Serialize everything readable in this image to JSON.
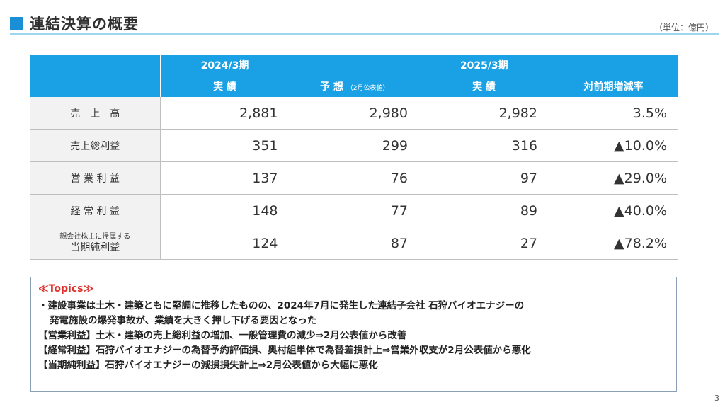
{
  "header": {
    "title": "連結決算の概要",
    "unit": "（単位：億円）"
  },
  "table": {
    "header_row1": [
      "2024/3期",
      "2025/3期"
    ],
    "header_row2": {
      "actual_prev": "実 績",
      "forecast": "予 想",
      "forecast_note": "（2月公表値）",
      "actual": "実 績",
      "change_rate": "対前期増減率"
    },
    "rows": [
      {
        "label": "売　上　高",
        "prev": "2,881",
        "forecast": "2,980",
        "actual": "2,982",
        "rate": "3.5%"
      },
      {
        "label": "売上総利益",
        "prev": "351",
        "forecast": "299",
        "actual": "316",
        "rate": "▲10.0%"
      },
      {
        "label": "営 業 利 益",
        "prev": "137",
        "forecast": "76",
        "actual": "97",
        "rate": "▲29.0%"
      },
      {
        "label": "経 常 利 益",
        "prev": "148",
        "forecast": "77",
        "actual": "89",
        "rate": "▲40.0%"
      },
      {
        "label_sub": "親会社株主に帰属する",
        "label": "当期純利益",
        "prev": "124",
        "forecast": "87",
        "actual": "27",
        "rate": "▲78.2%"
      }
    ]
  },
  "topics": {
    "title": "≪Topics≫",
    "lines": [
      "・建設事業は土木・建築ともに堅調に推移したものの、2024年7月に発生した連結子会社 石狩バイオエナジーの",
      "発電施設の爆発事故が、業績を大きく押し下げる要因となった",
      "【営業利益】土木・建築の売上総利益の増加、一般管理費の減少⇒2月公表値から改善",
      "【経常利益】石狩バイオエナジーの為替予約評価損、奥村組単体で為替差損計上⇒営業外収支が2月公表値から悪化",
      "【当期純利益】石狩バイオエナジーの減損損失計上⇒2月公表値から大幅に悪化"
    ]
  },
  "page_number": "3",
  "colors": {
    "accent": "#1a8fd6",
    "table_header": "#1aa0e4",
    "topics_title": "#e0302b"
  }
}
